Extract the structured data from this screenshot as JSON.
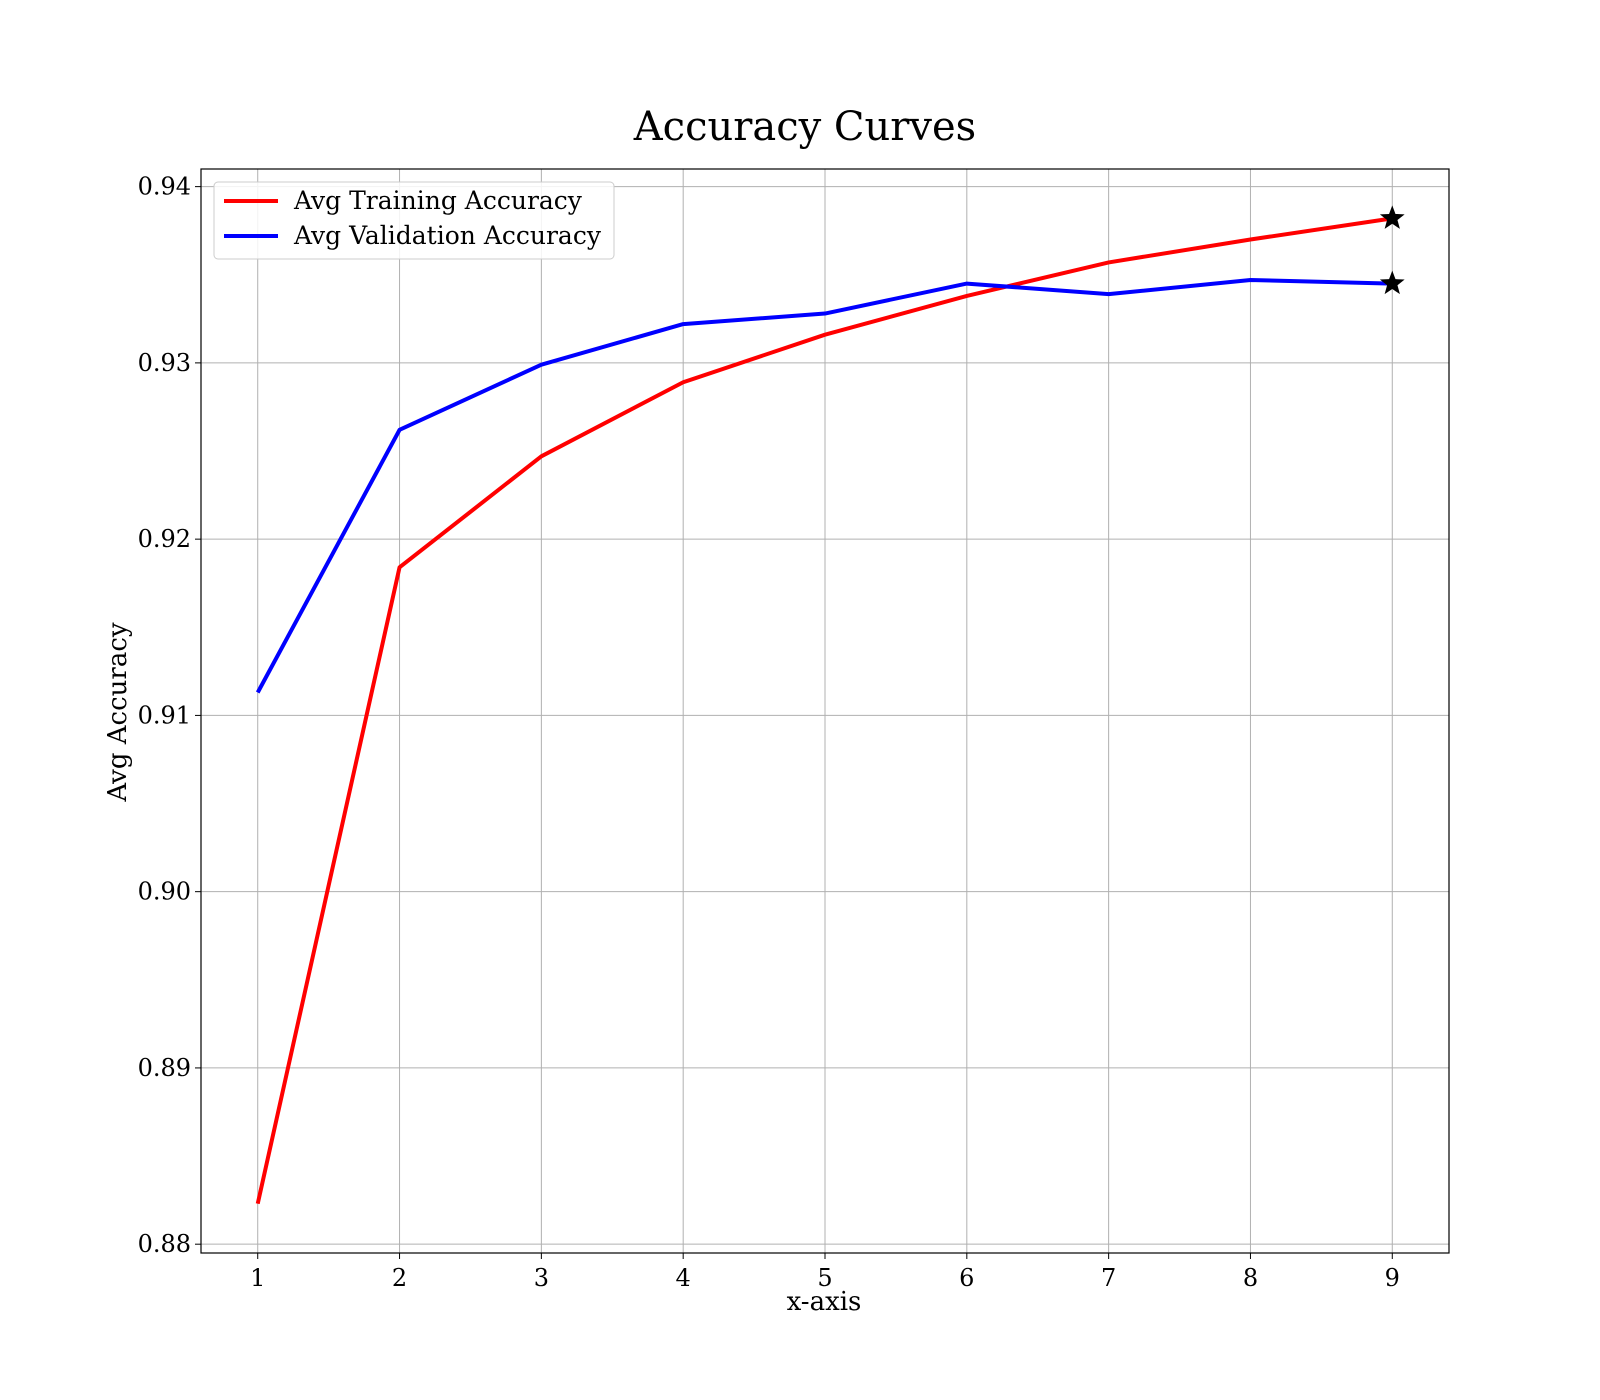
{
  "chart_data": {
    "type": "line",
    "title": "Accuracy Curves",
    "xlabel": "x-axis",
    "ylabel": "Avg Accuracy",
    "x": [
      1,
      2,
      3,
      4,
      5,
      6,
      7,
      8,
      9
    ],
    "xticks": [
      "1",
      "2",
      "3",
      "4",
      "5",
      "6",
      "7",
      "8",
      "9"
    ],
    "yticks": [
      "0.88",
      "0.89",
      "0.90",
      "0.91",
      "0.92",
      "0.93",
      "0.94"
    ],
    "xlim": [
      0.6,
      9.4
    ],
    "ylim": [
      0.8795,
      0.941
    ],
    "grid": true,
    "legend_position": "top-left",
    "series": [
      {
        "name": "Avg Training Accuracy",
        "color": "#ff0000",
        "values": [
          0.8823,
          0.9184,
          0.9247,
          0.9289,
          0.9316,
          0.9338,
          0.9357,
          0.937,
          0.9382
        ]
      },
      {
        "name": "Avg Validation Accuracy",
        "color": "#0000ff",
        "values": [
          0.9113,
          0.9262,
          0.9299,
          0.9322,
          0.9328,
          0.9345,
          0.9339,
          0.9347,
          0.9345
        ]
      }
    ],
    "markers": [
      {
        "series": 0,
        "x": 9,
        "shape": "star",
        "color": "#000000"
      },
      {
        "series": 1,
        "x": 9,
        "shape": "star",
        "color": "#000000"
      }
    ]
  }
}
